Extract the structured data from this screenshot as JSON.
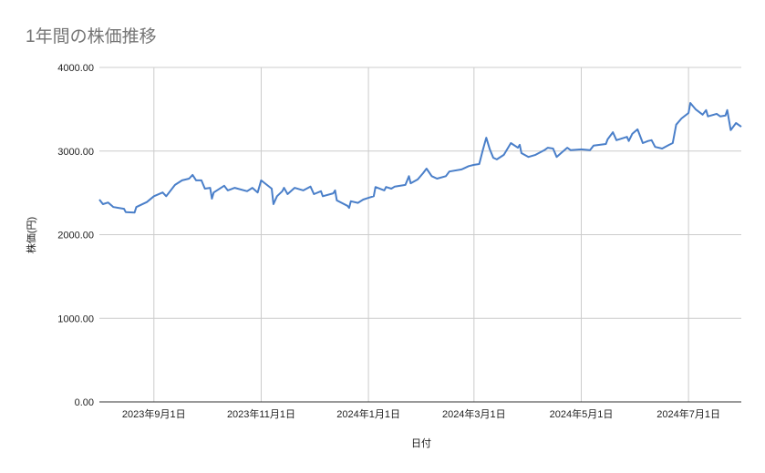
{
  "chart_data": {
    "type": "line",
    "title": "1年間の株価推移",
    "xlabel": "日付",
    "ylabel": "株価(円)",
    "xlim": [
      "2023-08-01",
      "2024-07-31"
    ],
    "ylim": [
      0,
      4000
    ],
    "yticks": [
      0,
      1000,
      2000,
      3000,
      4000
    ],
    "ytick_labels": [
      "0.00",
      "1000.00",
      "2000.00",
      "3000.00",
      "4000.00"
    ],
    "xticks": [
      "2023-09-01",
      "2023-11-01",
      "2024-01-01",
      "2024-03-01",
      "2024-05-01",
      "2024-07-01"
    ],
    "xtick_labels": [
      "2023年9月1日",
      "2023年11月1日",
      "2024年1月1日",
      "2024年3月1日",
      "2024年5月1日",
      "2024年7月1日"
    ],
    "grid": true,
    "legend": "none",
    "line_color": "#4a7fc9",
    "x": [
      "2023-08-01",
      "2023-08-03",
      "2023-08-06",
      "2023-08-09",
      "2023-08-15",
      "2023-08-16",
      "2023-08-21",
      "2023-08-22",
      "2023-08-28",
      "2023-09-01",
      "2023-09-06",
      "2023-09-08",
      "2023-09-13",
      "2023-09-17",
      "2023-09-21",
      "2023-09-23",
      "2023-09-25",
      "2023-09-28",
      "2023-09-30",
      "2023-10-03",
      "2023-10-04",
      "2023-10-05",
      "2023-10-11",
      "2023-10-13",
      "2023-10-17",
      "2023-10-24",
      "2023-10-27",
      "2023-10-30",
      "2023-11-01",
      "2023-11-07",
      "2023-11-08",
      "2023-11-10",
      "2023-11-13",
      "2023-11-14",
      "2023-11-16",
      "2023-11-20",
      "2023-11-25",
      "2023-11-29",
      "2023-12-01",
      "2023-12-05",
      "2023-12-06",
      "2023-12-12",
      "2023-12-13",
      "2023-12-14",
      "2023-12-20",
      "2023-12-21",
      "2023-12-22",
      "2023-12-26",
      "2023-12-29",
      "2024-01-01",
      "2024-01-04",
      "2024-01-05",
      "2024-01-10",
      "2024-01-11",
      "2024-01-14",
      "2024-01-16",
      "2024-01-22",
      "2024-01-24",
      "2024-01-25",
      "2024-01-29",
      "2024-02-01",
      "2024-02-03",
      "2024-02-06",
      "2024-02-09",
      "2024-02-14",
      "2024-02-16",
      "2024-02-23",
      "2024-02-27",
      "2024-03-01",
      "2024-03-04",
      "2024-03-06",
      "2024-03-08",
      "2024-03-10",
      "2024-03-12",
      "2024-03-14",
      "2024-03-18",
      "2024-03-22",
      "2024-03-26",
      "2024-03-27",
      "2024-03-28",
      "2024-04-01",
      "2024-04-05",
      "2024-04-10",
      "2024-04-12",
      "2024-04-15",
      "2024-04-17",
      "2024-04-20",
      "2024-04-23",
      "2024-04-25",
      "2024-05-01",
      "2024-05-06",
      "2024-05-08",
      "2024-05-15",
      "2024-05-16",
      "2024-05-19",
      "2024-05-21",
      "2024-05-27",
      "2024-05-28",
      "2024-05-30",
      "2024-06-02",
      "2024-06-05",
      "2024-06-08",
      "2024-06-10",
      "2024-06-12",
      "2024-06-16",
      "2024-06-20",
      "2024-06-22",
      "2024-06-24",
      "2024-06-27",
      "2024-07-01",
      "2024-07-02",
      "2024-07-05",
      "2024-07-09",
      "2024-07-11",
      "2024-07-12",
      "2024-07-17",
      "2024-07-19",
      "2024-07-22",
      "2024-07-23",
      "2024-07-25",
      "2024-07-28",
      "2024-07-31"
    ],
    "series": [
      {
        "values": [
          2420,
          2365,
          2385,
          2330,
          2310,
          2270,
          2265,
          2330,
          2390,
          2460,
          2505,
          2460,
          2595,
          2650,
          2670,
          2715,
          2650,
          2650,
          2550,
          2560,
          2430,
          2505,
          2585,
          2530,
          2560,
          2520,
          2560,
          2505,
          2650,
          2550,
          2365,
          2460,
          2520,
          2560,
          2485,
          2560,
          2530,
          2575,
          2485,
          2520,
          2460,
          2495,
          2530,
          2410,
          2345,
          2320,
          2400,
          2380,
          2420,
          2440,
          2460,
          2570,
          2530,
          2570,
          2550,
          2575,
          2595,
          2700,
          2615,
          2660,
          2735,
          2790,
          2700,
          2670,
          2700,
          2755,
          2780,
          2820,
          2835,
          2845,
          3010,
          3160,
          3020,
          2920,
          2900,
          2955,
          3095,
          3040,
          3075,
          2975,
          2930,
          2955,
          3010,
          3040,
          3030,
          2930,
          2985,
          3040,
          3010,
          3020,
          3010,
          3065,
          3085,
          3140,
          3225,
          3130,
          3170,
          3120,
          3205,
          3260,
          3095,
          3120,
          3130,
          3050,
          3030,
          3075,
          3095,
          3315,
          3390,
          3455,
          3575,
          3500,
          3435,
          3490,
          3415,
          3445,
          3415,
          3425,
          3490,
          3250,
          3335,
          3290
        ]
      }
    ]
  }
}
